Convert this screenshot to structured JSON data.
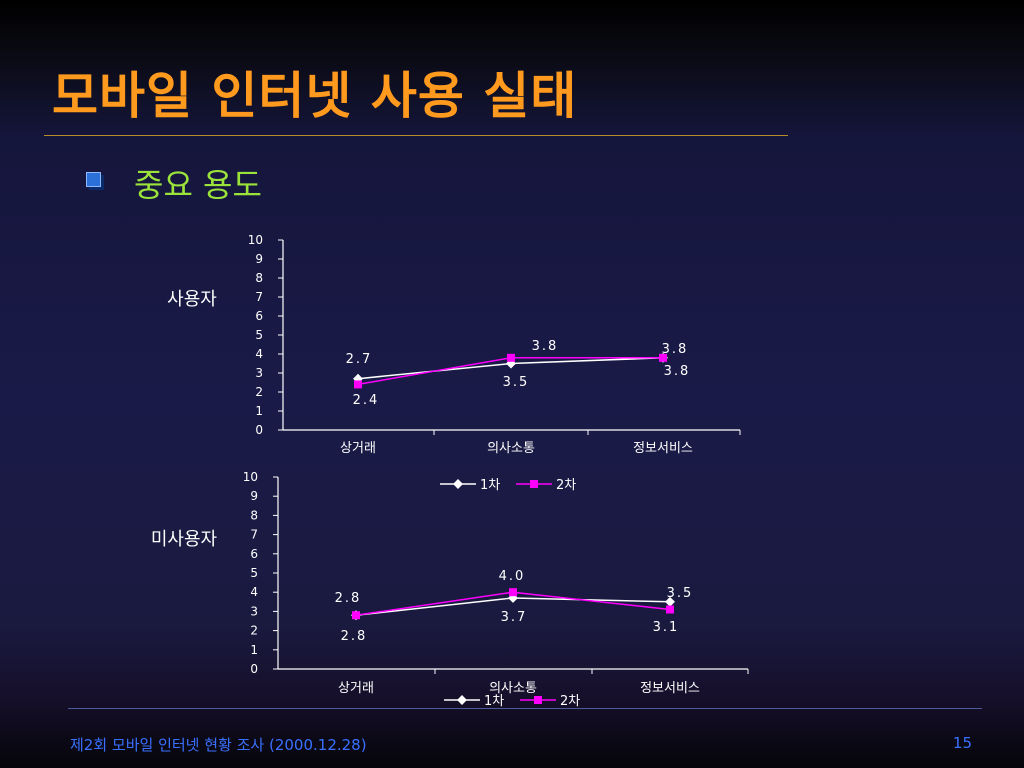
{
  "slide": {
    "title": "모바일 인터넷 사용 실태",
    "bullet": "중요 용도",
    "footer": "제2회 모바일 인터넷 현황 조사 (2000.12.28)",
    "page_number": "15"
  },
  "colors": {
    "series1": "#ffffff",
    "series2": "#ff00ff",
    "axis": "#ffffff",
    "title": "#ff9a1e",
    "bullet": "#9be23a",
    "footer": "#3a70ff"
  },
  "chart_data": [
    {
      "type": "line",
      "title": "사용자",
      "categories": [
        "상거래",
        "의사소통",
        "정보서비스"
      ],
      "ylim": [
        0,
        10
      ],
      "yticks": [
        "0",
        "1",
        "2",
        "3",
        "4",
        "5",
        "6",
        "7",
        "8",
        "9",
        "10"
      ],
      "legend": "none",
      "grid": false,
      "series": [
        {
          "name": "1차",
          "values": [
            2.7,
            3.5,
            3.8
          ],
          "labels": [
            "2.7",
            "3.5",
            "3.8"
          ],
          "marker": "diamond"
        },
        {
          "name": "2차",
          "values": [
            2.4,
            3.8,
            3.8
          ],
          "labels": [
            "2.4",
            "3.8",
            "3.8"
          ],
          "marker": "square"
        }
      ]
    },
    {
      "type": "line",
      "title": "미사용자",
      "categories": [
        "상거래",
        "의사소통",
        "정보서비스"
      ],
      "ylim": [
        0,
        10
      ],
      "yticks": [
        "0",
        "1",
        "2",
        "3",
        "4",
        "5",
        "6",
        "7",
        "8",
        "9",
        "10"
      ],
      "legend": "top and bottom",
      "grid": false,
      "series": [
        {
          "name": "1차",
          "values": [
            2.8,
            3.7,
            3.5
          ],
          "labels": [
            "2.8",
            "3.7",
            "3.5"
          ],
          "marker": "diamond"
        },
        {
          "name": "2차",
          "values": [
            2.8,
            4.0,
            3.1
          ],
          "labels": [
            "2.8",
            "4.0",
            "3.1"
          ],
          "marker": "square"
        }
      ]
    }
  ]
}
